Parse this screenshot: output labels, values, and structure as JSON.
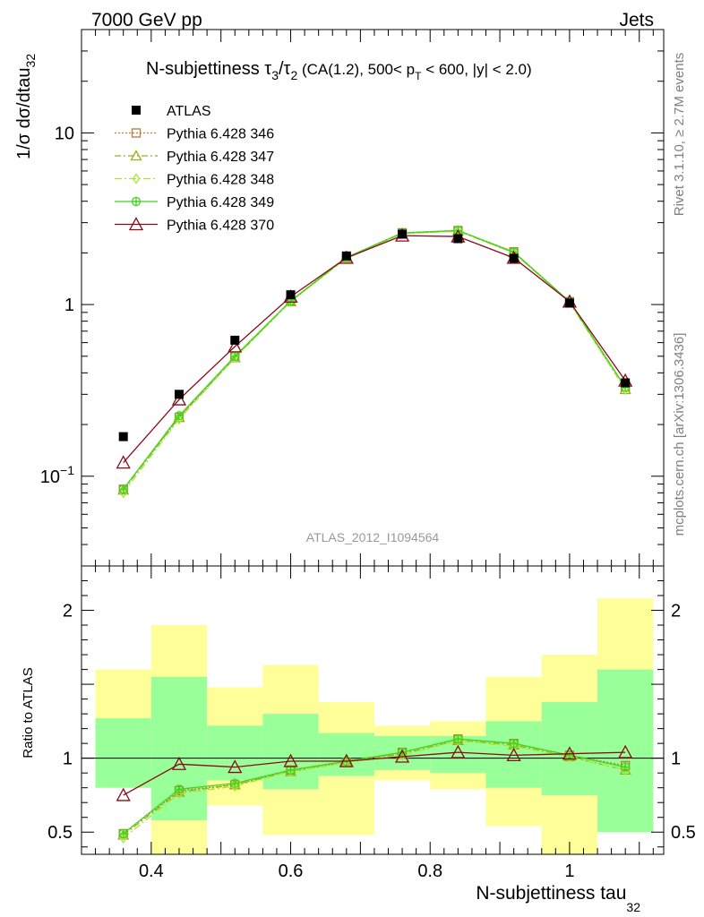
{
  "header": {
    "left": "7000 GeV pp",
    "right": "Jets"
  },
  "side_labels": {
    "rivet": "Rivet 3.1.10, ≥ 2.7M events",
    "mcplots": "mcplots.cern.ch [arXiv:1306.3436]"
  },
  "chart_data": [
    {
      "type": "line",
      "panel": "main",
      "title_parts": {
        "prefix": "N-subjettiness ",
        "tau": "τ",
        "sub3": "3",
        "slash": "/",
        "sub2": "2",
        "cond1": " (CA(1.2), 500< p",
        "subT": "T",
        "cond2": " < 600, |y| < 2.0)"
      },
      "ylabel": "1/σ dσ/dtau",
      "ylabel_sub": "32",
      "watermark": "ATLAS_2012_I1094564",
      "yscale": "log",
      "ylim": [
        0.03,
        40
      ],
      "xlim": [
        0.3,
        1.135
      ],
      "ytick_labels": [
        {
          "value": 10,
          "text": "10"
        },
        {
          "value": 1,
          "text": "1"
        },
        {
          "value": 0.1,
          "base": "10",
          "exp": "−1"
        }
      ],
      "x": [
        0.36,
        0.44,
        0.52,
        0.6,
        0.68,
        0.76,
        0.84,
        0.92,
        1.0,
        1.08
      ],
      "x_edges": [
        0.32,
        0.4,
        0.48,
        0.56,
        0.64,
        0.72,
        0.8,
        0.88,
        0.96,
        1.04,
        1.12
      ],
      "data_series": {
        "name": "ATLAS",
        "values": [
          0.17,
          0.3,
          0.62,
          1.14,
          1.92,
          2.57,
          2.42,
          1.86,
          1.02,
          0.35
        ]
      },
      "series": [
        {
          "name": "Pythia 6.428 346",
          "color": "#b97a3a",
          "marker": "open-square",
          "dash": "2,2",
          "values": [
            0.084,
            0.22,
            0.5,
            1.05,
            1.88,
            2.62,
            2.7,
            2.03,
            1.04,
            0.33
          ]
        },
        {
          "name": "Pythia 6.428 347",
          "color": "#9caf1a",
          "marker": "open-triangle",
          "dash": "7,3,2,3",
          "values": [
            0.083,
            0.22,
            0.49,
            1.04,
            1.87,
            2.6,
            2.68,
            2.01,
            1.03,
            0.32
          ]
        },
        {
          "name": "Pythia 6.428 348",
          "color": "#a8e63c",
          "marker": "open-diamond",
          "dash": "8,3,2,3",
          "values": [
            0.08,
            0.215,
            0.49,
            1.04,
            1.86,
            2.59,
            2.67,
            2.0,
            1.03,
            0.32
          ]
        },
        {
          "name": "Pythia 6.428 349",
          "color": "#3ed61c",
          "marker": "open-circle-cross",
          "dash": "",
          "values": [
            0.084,
            0.225,
            0.5,
            1.05,
            1.88,
            2.61,
            2.7,
            2.02,
            1.04,
            0.33
          ]
        },
        {
          "name": "Pythia 6.428 370",
          "color": "#8b0a1a",
          "marker": "open-triangle-big",
          "dash": "",
          "values": [
            0.12,
            0.28,
            0.57,
            1.11,
            1.87,
            2.52,
            2.49,
            1.87,
            1.04,
            0.36
          ]
        }
      ]
    },
    {
      "type": "line",
      "panel": "ratio",
      "ylabel": "Ratio to ATLAS",
      "xlabel": "N-subjettiness tau",
      "xlabel_sub": "32",
      "ylim": [
        0.35,
        2.3
      ],
      "xlim": [
        0.3,
        1.135
      ],
      "ytick_labels": [
        {
          "value": 2,
          "text": "2"
        },
        {
          "value": 1,
          "text": "1"
        },
        {
          "value": 0.5,
          "text": "0.5"
        }
      ],
      "xtick_labels": [
        {
          "value": 0.4,
          "text": "0.4"
        },
        {
          "value": 0.6,
          "text": "0.6"
        },
        {
          "value": 0.8,
          "text": "0.8"
        },
        {
          "value": 1.0,
          "text": "1"
        }
      ],
      "band_outer": [
        [
          0.8,
          1.6
        ],
        [
          0.3,
          1.9
        ],
        [
          0.68,
          1.48
        ],
        [
          0.48,
          1.63
        ],
        [
          0.48,
          1.38
        ],
        [
          0.85,
          1.22
        ],
        [
          0.79,
          1.25
        ],
        [
          0.54,
          1.55
        ],
        [
          0.3,
          1.7
        ],
        [
          0.5,
          2.08
        ]
      ],
      "band_inner": [
        [
          0.8,
          1.27
        ],
        [
          0.58,
          1.55
        ],
        [
          0.85,
          1.22
        ],
        [
          0.79,
          1.3
        ],
        [
          0.88,
          1.17
        ],
        [
          0.92,
          1.15
        ],
        [
          0.9,
          1.15
        ],
        [
          0.8,
          1.25
        ],
        [
          0.75,
          1.38
        ],
        [
          0.5,
          1.6
        ]
      ],
      "band_colors": {
        "outer": "#ffff99",
        "inner": "#99ff99"
      },
      "series": [
        {
          "name": "Pythia 6.428 346",
          "values": [
            0.49,
            0.78,
            0.82,
            0.92,
            0.97,
            1.04,
            1.13,
            1.1,
            1.02,
            0.95
          ]
        },
        {
          "name": "Pythia 6.428 347",
          "values": [
            0.48,
            0.77,
            0.82,
            0.91,
            0.97,
            1.03,
            1.12,
            1.09,
            1.01,
            0.92
          ]
        },
        {
          "name": "Pythia 6.428 348",
          "values": [
            0.46,
            0.76,
            0.81,
            0.91,
            0.97,
            1.02,
            1.12,
            1.08,
            1.01,
            0.92
          ]
        },
        {
          "name": "Pythia 6.428 349",
          "values": [
            0.49,
            0.79,
            0.83,
            0.92,
            0.98,
            1.04,
            1.13,
            1.1,
            1.02,
            0.94
          ]
        },
        {
          "name": "Pythia 6.428 370",
          "values": [
            0.75,
            0.96,
            0.94,
            0.98,
            0.98,
            1.01,
            1.04,
            1.02,
            1.03,
            1.04
          ]
        }
      ]
    }
  ]
}
